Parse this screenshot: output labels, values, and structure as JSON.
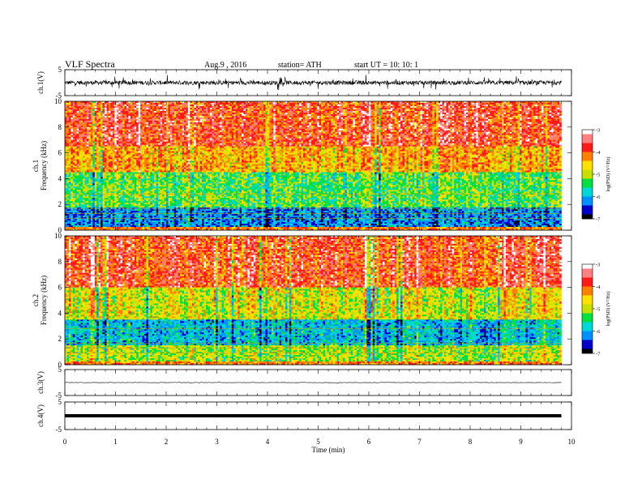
{
  "header": {
    "title": "VLF  Spectra",
    "date": "Aug.9  , 2016",
    "station": "station= ATH",
    "start": "start  UT  =    10: 10: 1"
  },
  "colors": {
    "spectrogram_scale": [
      "#000000",
      "#0000c8",
      "#0090ff",
      "#00d8d8",
      "#00e040",
      "#c8e000",
      "#ffe000",
      "#ff8000",
      "#ff1a1a",
      "#ff8080",
      "#ffffff"
    ],
    "trace": "#000000",
    "frame": "#000000"
  },
  "chart_data": [
    {
      "type": "line",
      "ylabel": "ch.1(V)",
      "ylim": [
        -5,
        5
      ],
      "y_ticks": [
        "5",
        "-5"
      ],
      "xlim": [
        0,
        10
      ],
      "series": [
        {
          "x_range": [
            0,
            9.8
          ],
          "baseline": 0,
          "amplitude_range": [
            -1.2,
            1.5
          ],
          "note_style": "noisy"
        }
      ]
    },
    {
      "type": "heatmap",
      "ylabel_channel": "ch.1",
      "ylabel": "Frequency  (kHz)",
      "ylim": [
        0,
        10
      ],
      "y_ticks": [
        "0",
        "2",
        "4",
        "6",
        "8",
        "10"
      ],
      "xlim": [
        0,
        10
      ],
      "data_x_range": [
        0,
        9.8
      ],
      "colorbar": {
        "label": "log(PSD) (V²/Hz)",
        "range": [
          -7,
          -3
        ],
        "ticks": [
          "-3",
          "-4",
          "-5",
          "-6",
          "-7"
        ]
      },
      "bands_kHz": [
        {
          "from": 0,
          "to": 1.8,
          "level": -6.2
        },
        {
          "from": 1.8,
          "to": 4.5,
          "level": -5.3
        },
        {
          "from": 4.5,
          "to": 6.5,
          "level": -4.4
        },
        {
          "from": 6.5,
          "to": 10,
          "level": -3.8
        }
      ]
    },
    {
      "type": "heatmap",
      "ylabel_channel": "ch.2",
      "ylabel": "Frequency  (kHz)",
      "ylim": [
        0,
        10
      ],
      "y_ticks": [
        "0",
        "2",
        "4",
        "6",
        "8",
        "10"
      ],
      "xlim": [
        0,
        10
      ],
      "data_x_range": [
        0,
        9.8
      ],
      "colorbar": {
        "label": "log(PSD) (V²/Hz)",
        "range": [
          -7,
          -3
        ],
        "ticks": [
          "-3",
          "-4",
          "-5",
          "-6",
          "-7"
        ]
      },
      "bands_kHz": [
        {
          "from": 0,
          "to": 1.5,
          "level": -5.0
        },
        {
          "from": 1.5,
          "to": 3.5,
          "level": -5.9
        },
        {
          "from": 3.5,
          "to": 6.0,
          "level": -4.8
        },
        {
          "from": 6.0,
          "to": 10,
          "level": -3.8
        }
      ]
    },
    {
      "type": "line",
      "ylabel": "ch.3(V)",
      "ylim": [
        -5,
        5
      ],
      "y_ticks": [
        "5",
        "-5"
      ],
      "xlim": [
        0,
        10
      ],
      "series": [
        {
          "x_range": [
            0,
            9.8
          ],
          "baseline": 0,
          "amplitude_range": [
            -0.3,
            0.3
          ],
          "note_style": "flat"
        }
      ]
    },
    {
      "type": "line",
      "ylabel": "ch.4(V)",
      "ylim": [
        -5,
        5
      ],
      "y_ticks": [
        "5",
        "-5"
      ],
      "xlim": [
        0,
        10
      ],
      "series": [
        {
          "x_range": [
            0,
            9.8
          ],
          "baseline": 0,
          "amplitude_range": [
            -0.2,
            0.2
          ],
          "note_style": "thick"
        }
      ]
    }
  ],
  "xaxis": {
    "label": "Time  (min)",
    "ticks": [
      "0",
      "1",
      "2",
      "3",
      "4",
      "5",
      "6",
      "7",
      "8",
      "9",
      "10"
    ]
  }
}
